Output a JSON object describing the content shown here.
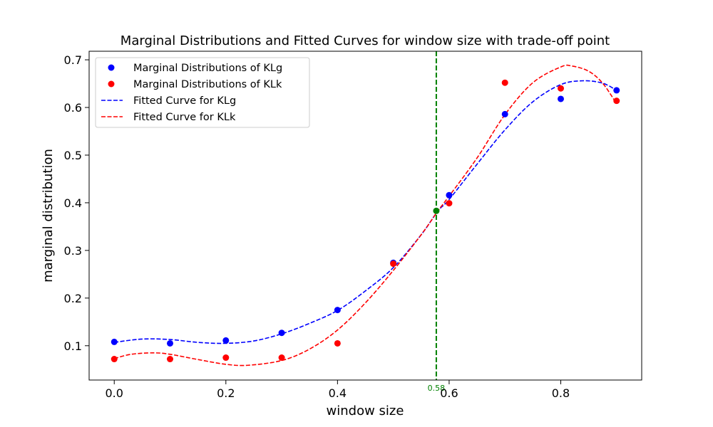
{
  "chart_data": {
    "type": "scatter",
    "title": "Marginal Distributions and Fitted Curves for window size with trade-off point",
    "xlabel": "window size",
    "ylabel": "marginal distribution",
    "xlim": [
      -0.045,
      0.945
    ],
    "ylim": [
      0.028,
      0.718
    ],
    "xticks": [
      0.0,
      0.2,
      0.4,
      0.6,
      0.8
    ],
    "xtick_labels": [
      "0.0",
      "0.2",
      "0.4",
      "0.6",
      "0.8"
    ],
    "yticks": [
      0.1,
      0.2,
      0.3,
      0.4,
      0.5,
      0.6,
      0.7
    ],
    "ytick_labels": [
      "0.1",
      "0.2",
      "0.3",
      "0.4",
      "0.5",
      "0.6",
      "0.7"
    ],
    "grid": false,
    "legend_position": "top-left",
    "x": [
      0.0,
      0.1,
      0.2,
      0.3,
      0.4,
      0.5,
      0.6,
      0.7,
      0.8,
      0.9
    ],
    "series": [
      {
        "name": "Marginal Distributions of KLg",
        "kind": "scatter",
        "color": "#0000ff",
        "values": [
          0.108,
          0.105,
          0.111,
          0.127,
          0.175,
          0.274,
          0.416,
          0.586,
          0.618,
          0.636
        ]
      },
      {
        "name": "Marginal Distributions of KLk",
        "kind": "scatter",
        "color": "#ff0000",
        "values": [
          0.072,
          0.072,
          0.075,
          0.075,
          0.105,
          0.272,
          0.399,
          0.652,
          0.64,
          0.614
        ]
      },
      {
        "name": "Fitted Curve for KLg",
        "kind": "dashed-line",
        "color": "#0000ff",
        "x": [
          0.0,
          0.05,
          0.1,
          0.15,
          0.2,
          0.25,
          0.3,
          0.35,
          0.4,
          0.45,
          0.5,
          0.55,
          0.58,
          0.6,
          0.65,
          0.7,
          0.75,
          0.8,
          0.84,
          0.875,
          0.9
        ],
        "values": [
          0.107,
          0.114,
          0.113,
          0.107,
          0.105,
          0.11,
          0.125,
          0.147,
          0.174,
          0.215,
          0.264,
          0.333,
          0.383,
          0.407,
          0.481,
          0.553,
          0.612,
          0.648,
          0.656,
          0.651,
          0.636
        ]
      },
      {
        "name": "Fitted Curve for KLk",
        "kind": "dashed-line",
        "color": "#ff0000",
        "x": [
          0.0,
          0.03,
          0.07,
          0.1,
          0.15,
          0.2,
          0.24,
          0.3,
          0.35,
          0.4,
          0.45,
          0.5,
          0.55,
          0.58,
          0.6,
          0.65,
          0.7,
          0.75,
          0.8,
          0.82,
          0.85,
          0.875,
          0.9
        ],
        "values": [
          0.073,
          0.082,
          0.085,
          0.082,
          0.071,
          0.061,
          0.059,
          0.069,
          0.093,
          0.133,
          0.19,
          0.258,
          0.333,
          0.383,
          0.414,
          0.494,
          0.585,
          0.652,
          0.685,
          0.687,
          0.676,
          0.651,
          0.608
        ]
      }
    ],
    "tradeoff": {
      "x": 0.577,
      "y": 0.383,
      "label": "0.58",
      "color": "#008000"
    }
  }
}
